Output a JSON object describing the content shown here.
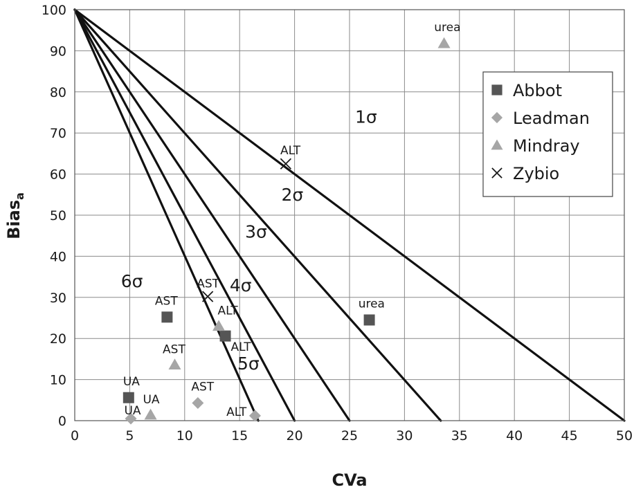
{
  "chart_data": {
    "type": "scatter",
    "xlabel": "CVa",
    "ylabel": "Bias",
    "ylabel_sub": "a",
    "xlim": [
      0,
      50
    ],
    "ylim": [
      0,
      100
    ],
    "xticks": [
      0,
      5,
      10,
      15,
      20,
      25,
      30,
      35,
      40,
      45,
      50
    ],
    "yticks": [
      0,
      10,
      20,
      30,
      40,
      50,
      60,
      70,
      80,
      90,
      100
    ],
    "grid": true,
    "legend_position": "top-right",
    "sigma_lines": [
      {
        "label": "1σ",
        "x_intercept": 50,
        "label_x": 25.5,
        "label_y": 72.5
      },
      {
        "label": "2σ",
        "x_intercept": 33.3,
        "label_x": 18.8,
        "label_y": 53.5
      },
      {
        "label": "3σ",
        "x_intercept": 25,
        "label_x": 15.5,
        "label_y": 44.5
      },
      {
        "label": "4σ",
        "x_intercept": 20,
        "label_x": 14.1,
        "label_y": 31.5
      },
      {
        "label": "5σ",
        "x_intercept": 16.7,
        "label_x": 14.8,
        "label_y": 12.5
      },
      {
        "label": "6σ",
        "x_intercept": null,
        "label_x": 4.2,
        "label_y": 32.5
      }
    ],
    "series": [
      {
        "name": "Abbot",
        "marker": "square",
        "color": "#555555",
        "points": [
          {
            "x": 26.8,
            "y": 24.5,
            "label": "urea",
            "label_x": 25.8,
            "label_y": 27.5
          },
          {
            "x": 8.4,
            "y": 25.2,
            "label": "AST",
            "label_x": 7.3,
            "label_y": 28.2
          },
          {
            "x": 13.7,
            "y": 20.6,
            "label": "ALT",
            "label_x": 14.2,
            "label_y": 17.0
          },
          {
            "x": 4.9,
            "y": 5.6,
            "label": "UA",
            "label_x": 4.4,
            "label_y": 8.6
          }
        ]
      },
      {
        "name": "Leadman",
        "marker": "diamond",
        "color": "#a6a6a6",
        "points": [
          {
            "x": 11.2,
            "y": 4.3,
            "label": "AST",
            "label_x": 10.6,
            "label_y": 7.3
          },
          {
            "x": 16.4,
            "y": 1.2,
            "label": "ALT",
            "label_x": 13.8,
            "label_y": 1.2
          },
          {
            "x": 5.1,
            "y": 0.5,
            "label": "UA",
            "label_x": 4.5,
            "label_y": 1.5
          }
        ]
      },
      {
        "name": "Mindray",
        "marker": "triangle",
        "color": "#a6a6a6",
        "points": [
          {
            "x": 33.6,
            "y": 91.8,
            "label": "urea",
            "label_x": 32.7,
            "label_y": 94.8
          },
          {
            "x": 13.1,
            "y": 23.0,
            "label": "ALT",
            "label_x": 13.0,
            "label_y": 25.8
          },
          {
            "x": 9.1,
            "y": 13.6,
            "label": "AST",
            "label_x": 8.0,
            "label_y": 16.4
          },
          {
            "x": 6.9,
            "y": 1.4,
            "label": "UA",
            "label_x": 6.2,
            "label_y": 4.2
          }
        ]
      },
      {
        "name": "Zybio",
        "marker": "cross",
        "color": "#1a1a1a",
        "points": [
          {
            "x": 19.2,
            "y": 62.5,
            "label": "ALT",
            "label_x": 18.7,
            "label_y": 64.8
          },
          {
            "x": 12.1,
            "y": 30.2,
            "label": "AST",
            "label_x": 11.1,
            "label_y": 32.4
          }
        ]
      }
    ]
  }
}
